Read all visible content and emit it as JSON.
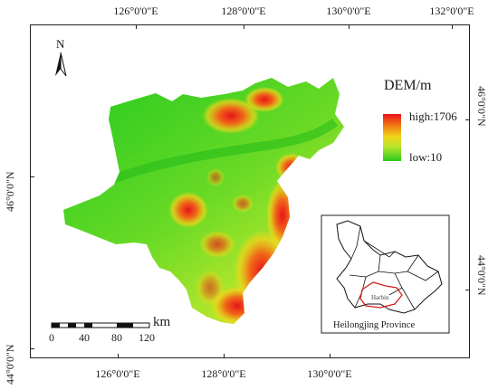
{
  "map": {
    "legend": {
      "title": "DEM/m",
      "high_label": "high:1706",
      "low_label": "low:10",
      "color_high": "#e8131b",
      "color_mid": "#f3d51a",
      "color_low": "#2cc81e"
    },
    "longitude_labels_top": [
      "126°0'0\"E",
      "128°0'0\"E",
      "130°0'0\"E",
      "132°0'0\"E"
    ],
    "longitude_labels_bottom": [
      "126°0'0\"E",
      "128°0'0\"E",
      "130°0'0\"E"
    ],
    "latitude_labels_left": [
      "46°0'0\"N",
      "44°0'0\"N"
    ],
    "latitude_labels_right": [
      "46°0'0\"N",
      "44°0'0\"N"
    ],
    "scale_bar": {
      "unit": "km",
      "ticks": [
        "0",
        "40",
        "80",
        "120"
      ]
    },
    "north_arrow": {
      "label": "N",
      "icon": "north-arrow-icon"
    },
    "inset": {
      "city_label": "Harbin",
      "caption": "Heilongjing Province",
      "highlight_color": "#d42020"
    }
  }
}
